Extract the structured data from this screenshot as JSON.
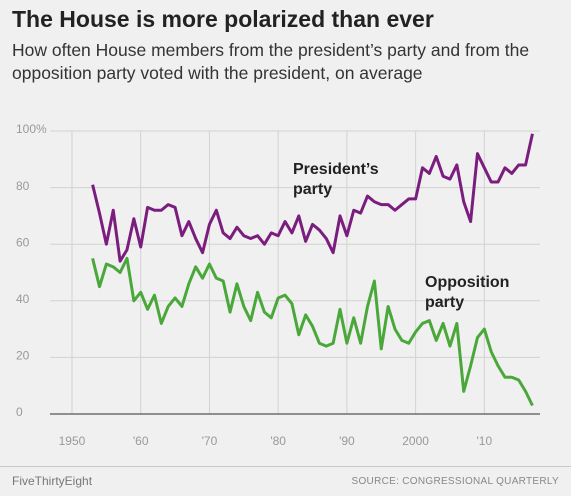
{
  "chart_data": {
    "type": "line",
    "title": "The House is more polarized than ever",
    "subtitle": "How often House members from the president’s party and from the opposition party voted with the president, on average",
    "annotations": [
      "President’s party",
      "Opposition party"
    ],
    "brand": "FiveThirtyEight",
    "source": "SOURCE: CONGRESSIONAL QUARTERLY",
    "x": [
      1953,
      1954,
      1955,
      1956,
      1957,
      1958,
      1959,
      1960,
      1961,
      1962,
      1963,
      1964,
      1965,
      1966,
      1967,
      1968,
      1969,
      1970,
      1971,
      1972,
      1973,
      1974,
      1975,
      1976,
      1977,
      1978,
      1979,
      1980,
      1981,
      1982,
      1983,
      1984,
      1985,
      1986,
      1987,
      1988,
      1989,
      1990,
      1991,
      1992,
      1993,
      1994,
      1995,
      1996,
      1997,
      1998,
      1999,
      2000,
      2001,
      2002,
      2003,
      2004,
      2005,
      2006,
      2007,
      2008,
      2009,
      2010,
      2011,
      2012,
      2013,
      2014,
      2015,
      2016,
      2017
    ],
    "series": [
      {
        "name": "President’s party",
        "color": "#7b1d7e",
        "values": [
          81,
          71,
          60,
          72,
          54,
          58,
          69,
          59,
          73,
          72,
          72,
          74,
          73,
          63,
          68,
          62,
          57,
          67,
          72,
          64,
          62,
          66,
          63,
          62,
          63,
          60,
          64,
          63,
          68,
          64,
          70,
          61,
          67,
          65,
          62,
          57,
          70,
          63,
          72,
          71,
          77,
          75,
          74,
          74,
          72,
          74,
          76,
          76,
          87,
          85,
          91,
          84,
          83,
          88,
          75,
          68,
          92,
          87,
          82,
          82,
          87,
          85,
          88,
          88,
          99
        ]
      },
      {
        "name": "Opposition party",
        "color": "#4aa83a",
        "values": [
          55,
          45,
          53,
          52,
          50,
          55,
          40,
          43,
          37,
          42,
          32,
          38,
          41,
          38,
          46,
          52,
          48,
          53,
          48,
          47,
          36,
          46,
          38,
          33,
          43,
          36,
          34,
          41,
          42,
          39,
          28,
          35,
          31,
          25,
          24,
          25,
          37,
          25,
          34,
          25,
          38,
          47,
          23,
          38,
          30,
          26,
          25,
          29,
          32,
          33,
          26,
          32,
          24,
          32,
          8,
          17,
          27,
          30,
          22,
          17,
          13,
          13,
          12,
          8,
          3
        ]
      }
    ],
    "xlim": [
      1946.8,
      2018.1
    ],
    "xticks": [
      1950,
      {
        "value": 1960,
        "label": "'60"
      },
      {
        "value": 1970,
        "label": "'70"
      },
      {
        "value": 1980,
        "label": "'80"
      },
      {
        "value": 1990,
        "label": "'90"
      },
      2000,
      {
        "value": 2010,
        "label": "'10"
      }
    ],
    "ylim": [
      0,
      100
    ],
    "yticks": [
      0,
      20,
      40,
      60,
      80,
      {
        "value": 100,
        "label": "100%"
      }
    ],
    "grid": true
  }
}
